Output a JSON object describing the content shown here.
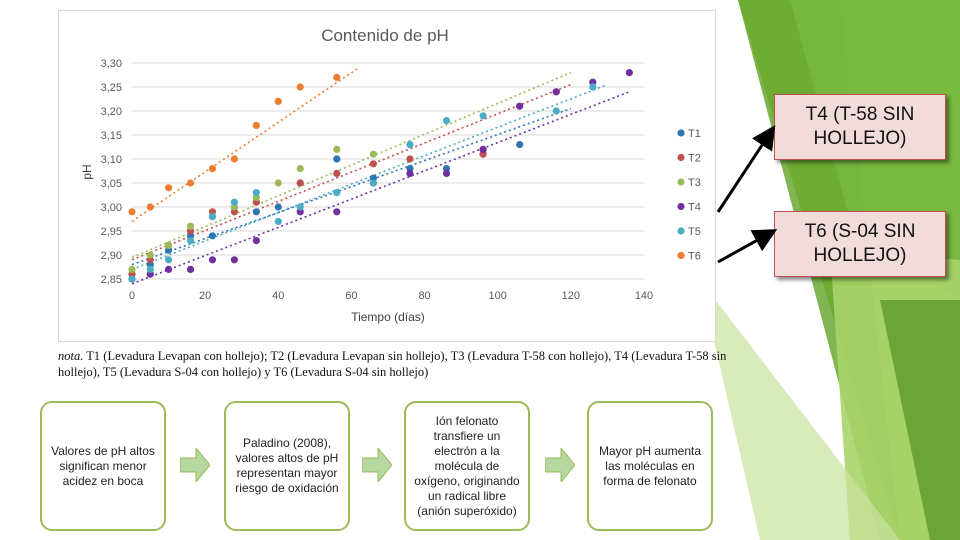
{
  "slide": {
    "note_lead": "nota.",
    "note_text": "T1 (Levadura Levapan con hollejo); T2 (Levadura Levapan sin hollejo), T3 (Levadura T-58 con hollejo), T4 (Levadura T-58 sin hollejo), T5 (Levadura S-04 con hollejo) y T6 (Levadura S-04 sin hollejo)",
    "callouts": [
      "T4 (T-58 SIN HOLLEJO)",
      "T6 (S-04 SIN HOLLEJO)"
    ],
    "flow": [
      "Valores de pH altos significan menor acidez en boca",
      "Paladino (2008), valores altos de pH representan mayor riesgo de oxidación",
      "Ión felonato transfiere un electrón a la molécula de oxígeno, originando un radical libre (anión superóxido)",
      "Mayor pH aumenta las moléculas en forma de felonato"
    ],
    "colors": {
      "accent_green": "#9bbb59",
      "callout_fill": "#f2dcdb",
      "callout_border": "#c0504d"
    }
  },
  "chart_data": {
    "type": "scatter",
    "title": "Contenido de pH",
    "xlabel": "Tiempo (días)",
    "ylabel": "pH",
    "xlim": [
      0,
      140
    ],
    "ylim": [
      2.85,
      3.3
    ],
    "xticks": [
      "0",
      "20",
      "40",
      "60",
      "80",
      "100",
      "120",
      "140"
    ],
    "yticks": [
      "2,85",
      "2,90",
      "2,95",
      "3,00",
      "3,05",
      "3,10",
      "3,15",
      "3,20",
      "3,25",
      "3,30"
    ],
    "legend_position": "right",
    "series": [
      {
        "name": "T1",
        "color": "#2e75b6",
        "x": [
          0,
          5,
          10,
          16,
          22,
          28,
          34,
          40,
          46,
          56,
          66,
          76,
          86,
          96,
          106
        ],
        "y": [
          2.85,
          2.88,
          2.91,
          2.94,
          2.94,
          3.0,
          2.99,
          3.0,
          3.05,
          3.1,
          3.06,
          3.08,
          3.08,
          3.11,
          3.13
        ]
      },
      {
        "name": "T2",
        "color": "#c0504d",
        "x": [
          0,
          5,
          10,
          16,
          22,
          28,
          34,
          46,
          56,
          66,
          76,
          96,
          116
        ],
        "y": [
          2.86,
          2.89,
          2.92,
          2.95,
          2.99,
          2.99,
          3.01,
          3.05,
          3.07,
          3.09,
          3.1,
          3.11,
          3.24
        ]
      },
      {
        "name": "T3",
        "color": "#9bbb59",
        "x": [
          0,
          5,
          10,
          16,
          22,
          28,
          34,
          40,
          46,
          56,
          66
        ],
        "y": [
          2.87,
          2.9,
          2.92,
          2.96,
          2.98,
          3.0,
          3.02,
          3.05,
          3.08,
          3.12,
          3.11
        ]
      },
      {
        "name": "T4",
        "color": "#7030a0",
        "x": [
          0,
          5,
          10,
          16,
          22,
          28,
          34,
          46,
          56,
          66,
          76,
          86,
          96,
          106,
          116,
          126,
          136
        ],
        "y": [
          2.85,
          2.86,
          2.87,
          2.87,
          2.89,
          2.89,
          2.93,
          2.99,
          2.99,
          3.05,
          3.07,
          3.07,
          3.12,
          3.21,
          3.24,
          3.26,
          3.28
        ]
      },
      {
        "name": "T5",
        "color": "#4bacc6",
        "x": [
          0,
          5,
          10,
          16,
          22,
          28,
          34,
          40,
          46,
          56,
          66,
          76,
          86,
          96,
          116,
          126
        ],
        "y": [
          2.85,
          2.87,
          2.89,
          2.93,
          2.98,
          3.01,
          3.03,
          2.97,
          3.0,
          3.03,
          3.05,
          3.13,
          3.18,
          3.19,
          3.2,
          3.25
        ]
      },
      {
        "name": "T6",
        "color": "#ed7d31",
        "x": [
          0,
          5,
          10,
          16,
          22,
          28,
          34,
          40,
          46,
          56
        ],
        "y": [
          2.99,
          3.0,
          3.04,
          3.05,
          3.08,
          3.1,
          3.17,
          3.22,
          3.25,
          3.27
        ]
      }
    ],
    "trendlines": [
      {
        "series": "T1",
        "from": [
          0,
          2.88
        ],
        "to": [
          120,
          3.205
        ]
      },
      {
        "series": "T2",
        "from": [
          0,
          2.89
        ],
        "to": [
          120,
          3.255
        ]
      },
      {
        "series": "T3",
        "from": [
          0,
          2.895
        ],
        "to": [
          120,
          3.28
        ]
      },
      {
        "series": "T4",
        "from": [
          0,
          2.84
        ],
        "to": [
          136,
          3.24
        ]
      },
      {
        "series": "T5",
        "from": [
          0,
          2.87
        ],
        "to": [
          130,
          3.255
        ]
      },
      {
        "series": "T6",
        "from": [
          0,
          2.97
        ],
        "to": [
          62,
          3.29
        ]
      }
    ]
  }
}
